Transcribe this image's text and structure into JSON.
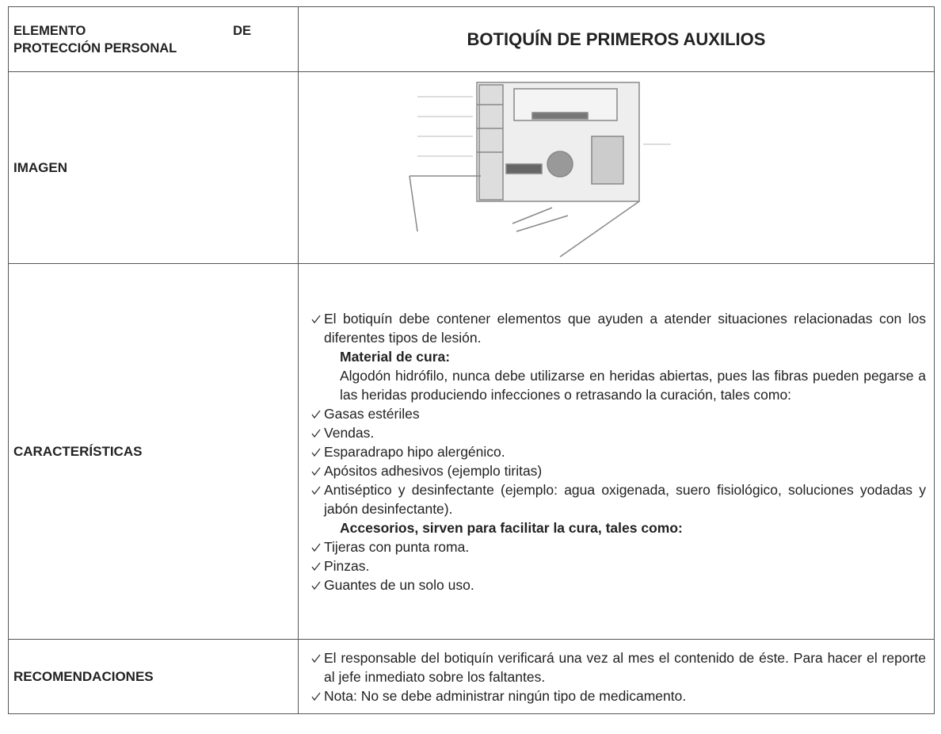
{
  "header": {
    "label_lines": [
      "ELEMENTO DE",
      "PROTECCIÓN PERSONAL"
    ],
    "title": "BOTIQUÍN DE PRIMEROS AUXILIOS"
  },
  "rows": [
    {
      "label": "IMAGEN"
    },
    {
      "label": "CARACTERÍSTICAS",
      "items": [
        {
          "kind": "check",
          "text": "El botiquín debe contener elementos que ayuden a atender situaciones relacionadas con los diferentes tipos de lesión."
        },
        {
          "kind": "heading",
          "text": "Material de cura:"
        },
        {
          "kind": "text",
          "text": "Algodón hidrófilo, nunca debe utilizarse en heridas abiertas, pues las fibras pueden pegarse a las heridas produciendo infecciones o retrasando la curación, tales como:"
        },
        {
          "kind": "check",
          "text": "Gasas estériles"
        },
        {
          "kind": "check",
          "text": "Vendas."
        },
        {
          "kind": "check",
          "text": "Esparadrapo hipo alergénico."
        },
        {
          "kind": "check",
          "text": "Apósitos adhesivos (ejemplo tiritas)"
        },
        {
          "kind": "check",
          "text": "Antiséptico y desinfectante (ejemplo: agua oxigenada, suero fisiológico, soluciones yodadas y jabón desinfectante)."
        },
        {
          "kind": "heading",
          "text": "Accesorios, sirven para facilitar la cura, tales como:"
        },
        {
          "kind": "check",
          "text": "Tijeras con punta roma."
        },
        {
          "kind": "check",
          "text": "Pinzas."
        },
        {
          "kind": "check",
          "text": "Guantes de un solo uso."
        }
      ]
    },
    {
      "label": "RECOMENDACIONES",
      "items": [
        {
          "kind": "check",
          "text": "El responsable del botiquín verificará una vez al mes el contenido de éste. Para hacer el reporte al jefe inmediato sobre los faltantes."
        },
        {
          "kind": "check",
          "text": "Nota: No se debe administrar ningún tipo de medicamento."
        }
      ]
    }
  ]
}
